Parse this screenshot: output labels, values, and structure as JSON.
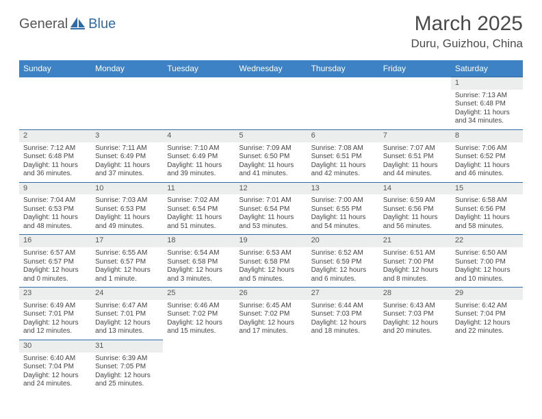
{
  "brand": {
    "part1": "General",
    "part2": "Blue"
  },
  "title": "March 2025",
  "location": "Duru, Guizhou, China",
  "colors": {
    "header_bg": "#3d82c4",
    "header_text": "#ffffff",
    "rule": "#2f6aa8",
    "daynum_bg": "#eceded",
    "logo_blue": "#2f6aa8",
    "body_text": "#444444"
  },
  "weekdays": [
    "Sunday",
    "Monday",
    "Tuesday",
    "Wednesday",
    "Thursday",
    "Friday",
    "Saturday"
  ],
  "weeks": [
    [
      {
        "n": "",
        "empty": true
      },
      {
        "n": "",
        "empty": true
      },
      {
        "n": "",
        "empty": true
      },
      {
        "n": "",
        "empty": true
      },
      {
        "n": "",
        "empty": true
      },
      {
        "n": "",
        "empty": true
      },
      {
        "n": "1",
        "sr": "Sunrise: 7:13 AM",
        "ss": "Sunset: 6:48 PM",
        "dl": "Daylight: 11 hours and 34 minutes."
      }
    ],
    [
      {
        "n": "2",
        "sr": "Sunrise: 7:12 AM",
        "ss": "Sunset: 6:48 PM",
        "dl": "Daylight: 11 hours and 36 minutes."
      },
      {
        "n": "3",
        "sr": "Sunrise: 7:11 AM",
        "ss": "Sunset: 6:49 PM",
        "dl": "Daylight: 11 hours and 37 minutes."
      },
      {
        "n": "4",
        "sr": "Sunrise: 7:10 AM",
        "ss": "Sunset: 6:49 PM",
        "dl": "Daylight: 11 hours and 39 minutes."
      },
      {
        "n": "5",
        "sr": "Sunrise: 7:09 AM",
        "ss": "Sunset: 6:50 PM",
        "dl": "Daylight: 11 hours and 41 minutes."
      },
      {
        "n": "6",
        "sr": "Sunrise: 7:08 AM",
        "ss": "Sunset: 6:51 PM",
        "dl": "Daylight: 11 hours and 42 minutes."
      },
      {
        "n": "7",
        "sr": "Sunrise: 7:07 AM",
        "ss": "Sunset: 6:51 PM",
        "dl": "Daylight: 11 hours and 44 minutes."
      },
      {
        "n": "8",
        "sr": "Sunrise: 7:06 AM",
        "ss": "Sunset: 6:52 PM",
        "dl": "Daylight: 11 hours and 46 minutes."
      }
    ],
    [
      {
        "n": "9",
        "sr": "Sunrise: 7:04 AM",
        "ss": "Sunset: 6:53 PM",
        "dl": "Daylight: 11 hours and 48 minutes."
      },
      {
        "n": "10",
        "sr": "Sunrise: 7:03 AM",
        "ss": "Sunset: 6:53 PM",
        "dl": "Daylight: 11 hours and 49 minutes."
      },
      {
        "n": "11",
        "sr": "Sunrise: 7:02 AM",
        "ss": "Sunset: 6:54 PM",
        "dl": "Daylight: 11 hours and 51 minutes."
      },
      {
        "n": "12",
        "sr": "Sunrise: 7:01 AM",
        "ss": "Sunset: 6:54 PM",
        "dl": "Daylight: 11 hours and 53 minutes."
      },
      {
        "n": "13",
        "sr": "Sunrise: 7:00 AM",
        "ss": "Sunset: 6:55 PM",
        "dl": "Daylight: 11 hours and 54 minutes."
      },
      {
        "n": "14",
        "sr": "Sunrise: 6:59 AM",
        "ss": "Sunset: 6:56 PM",
        "dl": "Daylight: 11 hours and 56 minutes."
      },
      {
        "n": "15",
        "sr": "Sunrise: 6:58 AM",
        "ss": "Sunset: 6:56 PM",
        "dl": "Daylight: 11 hours and 58 minutes."
      }
    ],
    [
      {
        "n": "16",
        "sr": "Sunrise: 6:57 AM",
        "ss": "Sunset: 6:57 PM",
        "dl": "Daylight: 12 hours and 0 minutes."
      },
      {
        "n": "17",
        "sr": "Sunrise: 6:55 AM",
        "ss": "Sunset: 6:57 PM",
        "dl": "Daylight: 12 hours and 1 minute."
      },
      {
        "n": "18",
        "sr": "Sunrise: 6:54 AM",
        "ss": "Sunset: 6:58 PM",
        "dl": "Daylight: 12 hours and 3 minutes."
      },
      {
        "n": "19",
        "sr": "Sunrise: 6:53 AM",
        "ss": "Sunset: 6:58 PM",
        "dl": "Daylight: 12 hours and 5 minutes."
      },
      {
        "n": "20",
        "sr": "Sunrise: 6:52 AM",
        "ss": "Sunset: 6:59 PM",
        "dl": "Daylight: 12 hours and 6 minutes."
      },
      {
        "n": "21",
        "sr": "Sunrise: 6:51 AM",
        "ss": "Sunset: 7:00 PM",
        "dl": "Daylight: 12 hours and 8 minutes."
      },
      {
        "n": "22",
        "sr": "Sunrise: 6:50 AM",
        "ss": "Sunset: 7:00 PM",
        "dl": "Daylight: 12 hours and 10 minutes."
      }
    ],
    [
      {
        "n": "23",
        "sr": "Sunrise: 6:49 AM",
        "ss": "Sunset: 7:01 PM",
        "dl": "Daylight: 12 hours and 12 minutes."
      },
      {
        "n": "24",
        "sr": "Sunrise: 6:47 AM",
        "ss": "Sunset: 7:01 PM",
        "dl": "Daylight: 12 hours and 13 minutes."
      },
      {
        "n": "25",
        "sr": "Sunrise: 6:46 AM",
        "ss": "Sunset: 7:02 PM",
        "dl": "Daylight: 12 hours and 15 minutes."
      },
      {
        "n": "26",
        "sr": "Sunrise: 6:45 AM",
        "ss": "Sunset: 7:02 PM",
        "dl": "Daylight: 12 hours and 17 minutes."
      },
      {
        "n": "27",
        "sr": "Sunrise: 6:44 AM",
        "ss": "Sunset: 7:03 PM",
        "dl": "Daylight: 12 hours and 18 minutes."
      },
      {
        "n": "28",
        "sr": "Sunrise: 6:43 AM",
        "ss": "Sunset: 7:03 PM",
        "dl": "Daylight: 12 hours and 20 minutes."
      },
      {
        "n": "29",
        "sr": "Sunrise: 6:42 AM",
        "ss": "Sunset: 7:04 PM",
        "dl": "Daylight: 12 hours and 22 minutes."
      }
    ],
    [
      {
        "n": "30",
        "sr": "Sunrise: 6:40 AM",
        "ss": "Sunset: 7:04 PM",
        "dl": "Daylight: 12 hours and 24 minutes."
      },
      {
        "n": "31",
        "sr": "Sunrise: 6:39 AM",
        "ss": "Sunset: 7:05 PM",
        "dl": "Daylight: 12 hours and 25 minutes."
      },
      {
        "n": "",
        "empty": true
      },
      {
        "n": "",
        "empty": true
      },
      {
        "n": "",
        "empty": true
      },
      {
        "n": "",
        "empty": true
      },
      {
        "n": "",
        "empty": true
      }
    ]
  ]
}
